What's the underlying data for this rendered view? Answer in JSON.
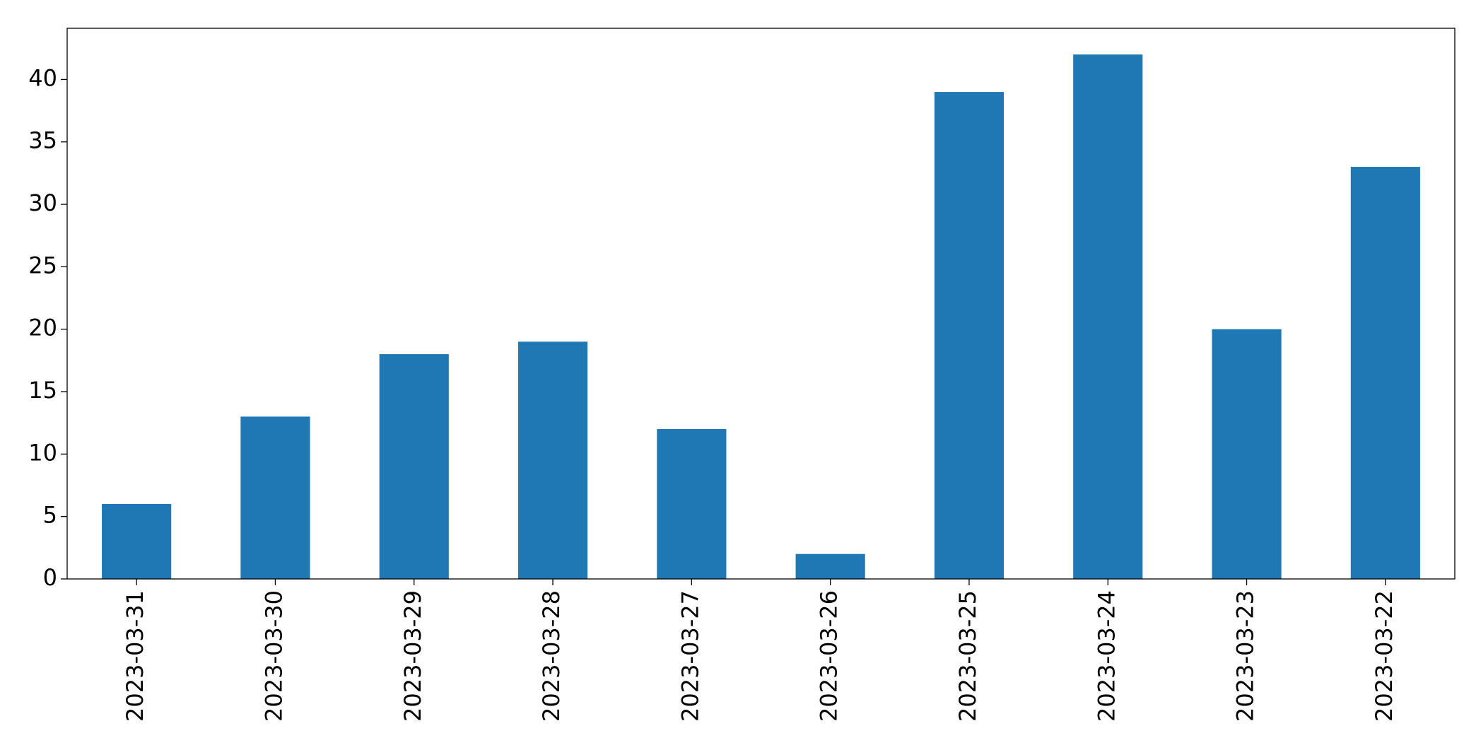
{
  "chart_data": {
    "type": "bar",
    "categories": [
      "2023-03-31",
      "2023-03-30",
      "2023-03-29",
      "2023-03-28",
      "2023-03-27",
      "2023-03-26",
      "2023-03-25",
      "2023-03-24",
      "2023-03-23",
      "2023-03-22"
    ],
    "values": [
      6,
      13,
      18,
      19,
      12,
      2,
      39,
      42,
      20,
      33
    ],
    "color": "#1f77b4",
    "ylim": [
      0,
      44.1
    ],
    "yticks": [
      0,
      5,
      10,
      15,
      20,
      25,
      30,
      35,
      40
    ],
    "grid": false
  }
}
